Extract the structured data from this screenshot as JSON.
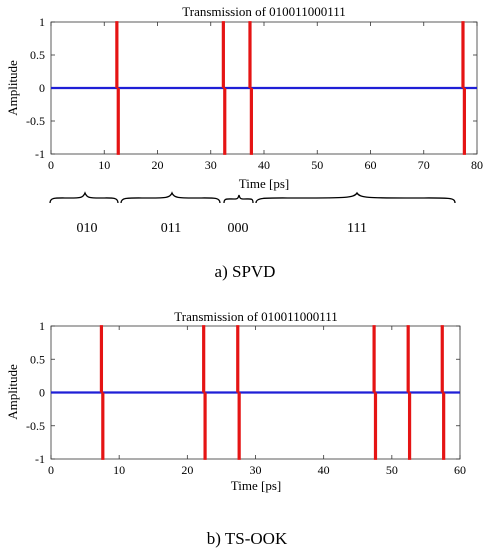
{
  "chart_data": [
    {
      "type": "line",
      "title": "Transmission of 010011000111",
      "xlabel": "Time [ps]",
      "ylabel": "Amplitude",
      "xlim": [
        0,
        80
      ],
      "ylim": [
        -1,
        1
      ],
      "xticks": [
        "0",
        "10",
        "20",
        "30",
        "40",
        "50",
        "60",
        "70",
        "80"
      ],
      "yticks": [
        "1",
        "0.5",
        "0",
        "-0.5",
        "-1"
      ],
      "grid": false,
      "series": [
        {
          "color": "#1f1fd6",
          "x": [
            0,
            80
          ],
          "values": [
            0,
            0
          ]
        },
        {
          "color": "#e51414",
          "pulse_times": [
            12.5,
            32.5,
            37.5,
            77.5
          ],
          "amplitude": [
            1,
            -1
          ]
        }
      ],
      "annotations": [
        "010",
        "011",
        "000",
        "111"
      ],
      "caption": "a) SPVD"
    },
    {
      "type": "line",
      "title": "Transmission of 010011000111",
      "xlabel": "Time [ps]",
      "ylabel": "Amplitude",
      "xlim": [
        0,
        60
      ],
      "ylim": [
        -1,
        1
      ],
      "xticks": [
        "0",
        "10",
        "20",
        "30",
        "40",
        "50",
        "60"
      ],
      "yticks": [
        "1",
        "0.5",
        "0",
        "-0.5",
        "-1"
      ],
      "grid": false,
      "series": [
        {
          "color": "#1f1fd6",
          "x": [
            0,
            60
          ],
          "values": [
            0,
            0
          ]
        },
        {
          "color": "#e51414",
          "pulse_times": [
            7.5,
            22.5,
            27.5,
            47.5,
            52.5,
            57.5
          ],
          "amplitude": [
            1,
            -1
          ]
        }
      ],
      "caption": "b) TS-OOK"
    }
  ]
}
